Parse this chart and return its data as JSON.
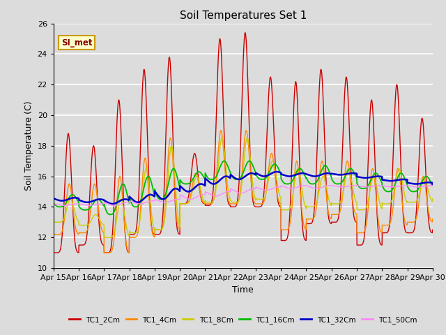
{
  "title": "Soil Temperatures Set 1",
  "xlabel": "Time",
  "ylabel": "Soil Temperature (C)",
  "ylim": [
    10,
    26
  ],
  "xlim": [
    0,
    360
  ],
  "background_color": "#dcdcdc",
  "annotation_text": "SI_met",
  "annotation_bg": "#ffffcc",
  "annotation_border": "#cc9900",
  "series_colors": {
    "TC1_2Cm": "#cc0000",
    "TC1_4Cm": "#ff8800",
    "TC1_8Cm": "#cccc00",
    "TC1_16Cm": "#00bb00",
    "TC1_32Cm": "#0000cc",
    "TC1_50Cm": "#ff88ff"
  },
  "tick_labels": [
    "Apr 15",
    "Apr 16",
    "Apr 17",
    "Apr 18",
    "Apr 19",
    "Apr 20",
    "Apr 21",
    "Apr 22",
    "Apr 23",
    "Apr 24",
    "Apr 25",
    "Apr 26",
    "Apr 27",
    "Apr 28",
    "Apr 29",
    "Apr 30"
  ],
  "tick_positions": [
    0,
    24,
    48,
    72,
    96,
    120,
    144,
    168,
    192,
    216,
    240,
    264,
    288,
    312,
    336,
    360
  ],
  "yticks": [
    10,
    12,
    14,
    16,
    18,
    20,
    22,
    24,
    26
  ]
}
